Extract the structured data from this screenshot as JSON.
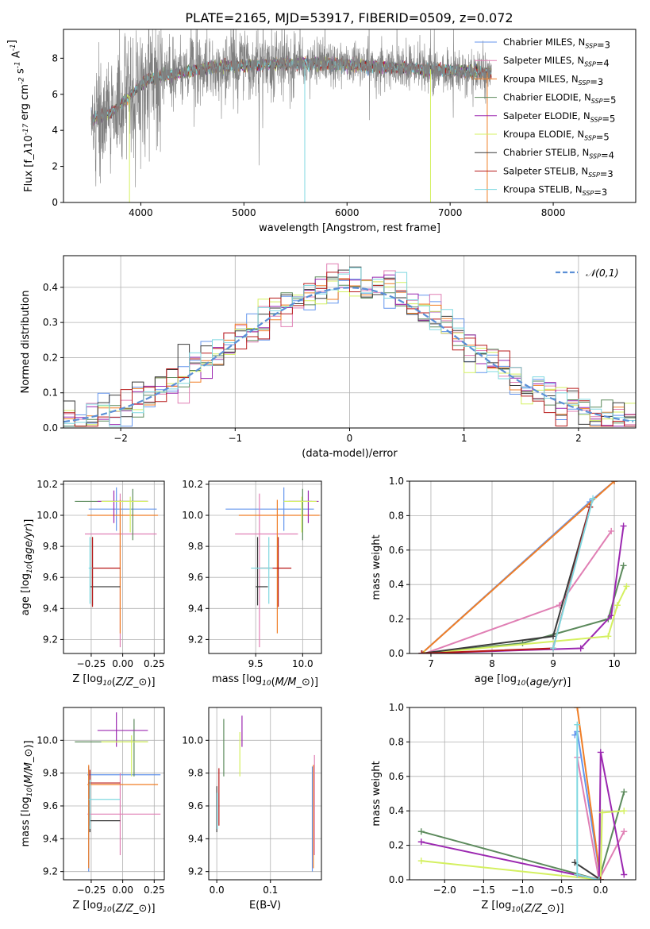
{
  "figure_title": "PLATE=2165, MJD=53917, FIBERID=0509, z=0.072",
  "colors": {
    "obs": "#808080",
    "chab_miles": "#6495ed",
    "salp_miles": "#e07fb4",
    "krou_miles": "#f07e26",
    "chab_elodie": "#5c8a5c",
    "salp_elodie": "#9b27b0",
    "krou_elodie": "#d4f060",
    "chab_stelib": "#3a3a3a",
    "salp_stelib": "#b81b1b",
    "krou_stelib": "#7fd8e0",
    "gauss": "#5b8fd6",
    "grid": "#b0b0b0"
  },
  "chart_data": [
    {
      "id": "spectrum",
      "type": "line",
      "xlabel": "wavelength [Angstrom, rest frame]",
      "ylabel": "Flux [f$_\\lambda$10$^{-17}$ erg cm$^{-2}$ s$^{-1}$ A$^{-1}$]",
      "xlim": [
        3250,
        8800
      ],
      "ylim": [
        0,
        9.6
      ],
      "xticks": [
        4000,
        5000,
        6000,
        7000,
        8000
      ],
      "yticks": [
        0,
        2,
        4,
        6,
        8
      ],
      "grid": false,
      "legend_loc": "right",
      "legend": [
        "Chabrier MILES, N$_{SSP}$=3",
        "Salpeter MILES, N$_{SSP}$=4",
        "Kroupa MILES, N$_{SSP}$=3",
        "Chabrier ELODIE, N$_{SSP}$=5",
        "Salpeter ELODIE, N$_{SSP}$=5",
        "Kroupa ELODIE, N$_{SSP}$=5",
        "Chabrier STELIB, N$_{SSP}$=4",
        "Salpeter STELIB, N$_{SSP}$=3",
        "Kroupa STELIB, N$_{SSP}$=3"
      ],
      "continuum": [
        [
          3500,
          4.6
        ],
        [
          3700,
          4.9
        ],
        [
          3850,
          5.7
        ],
        [
          3950,
          6.2
        ],
        [
          4050,
          6.8
        ],
        [
          4200,
          7.0
        ],
        [
          4400,
          7.2
        ],
        [
          4700,
          7.5
        ],
        [
          5000,
          7.6
        ],
        [
          5400,
          7.7
        ],
        [
          5800,
          7.7
        ],
        [
          6200,
          7.55
        ],
        [
          6600,
          7.45
        ],
        [
          7000,
          7.3
        ],
        [
          7400,
          7.2
        ]
      ]
    },
    {
      "id": "residuals",
      "type": "histogram",
      "xlabel": "(data-model)/error",
      "ylabel": "Normed distribution",
      "xlim": [
        -2.5,
        2.5
      ],
      "ylim": [
        0,
        0.49
      ],
      "xticks": [
        -2,
        -1,
        0,
        1,
        2
      ],
      "yticks": [
        0.0,
        0.1,
        0.2,
        0.3,
        0.4
      ],
      "grid": true,
      "legend": [
        "$\\mathcal{N}(0,1)$"
      ],
      "legend_loc": "top-right",
      "bin_width": 0.1
    },
    {
      "id": "age_vs_Z",
      "type": "errorbar",
      "xlabel": "Z [log$_{10}$($Z/Z_\\odot$)]",
      "ylabel": "age  [log$_{10}$($age/yr$)]",
      "xlim": [
        -0.47,
        0.33
      ],
      "ylim": [
        9.11,
        10.22
      ],
      "xticks": [
        -0.25,
        0.0,
        0.25
      ],
      "xticklabels": [
        "−0.25",
        "0.00",
        "0.25"
      ],
      "yticks": [
        9.2,
        9.4,
        9.6,
        9.8,
        10.0,
        10.2
      ],
      "grid": true,
      "points": [
        {
          "c": "chab_miles",
          "x": -0.05,
          "y": 10.04,
          "xe": [
            -0.27,
            0.27
          ],
          "ye": [
            9.9,
            10.18
          ]
        },
        {
          "c": "salp_miles",
          "x": -0.02,
          "y": 9.88,
          "xe": [
            -0.3,
            0.27
          ],
          "ye": [
            9.15,
            10.14
          ]
        },
        {
          "c": "krou_miles",
          "x": -0.02,
          "y": 10.0,
          "xe": [
            -0.28,
            0.28
          ],
          "ye": [
            9.24,
            10.1
          ]
        },
        {
          "c": "chab_elodie",
          "x": 0.08,
          "y": 10.09,
          "xe": [
            -0.38,
            0.2
          ],
          "ye": [
            9.84,
            10.17
          ]
        },
        {
          "c": "salp_elodie",
          "x": -0.07,
          "y": 10.09,
          "xe": [
            -0.2,
            0.2
          ],
          "ye": [
            9.95,
            10.16
          ]
        },
        {
          "c": "krou_elodie",
          "x": 0.06,
          "y": 10.09,
          "xe": [
            -0.17,
            0.2
          ],
          "ye": [
            9.89,
            10.12
          ]
        },
        {
          "c": "chab_stelib",
          "x": -0.24,
          "y": 9.54,
          "xe": [
            -0.26,
            -0.02
          ],
          "ye": [
            9.42,
            9.86
          ]
        },
        {
          "c": "salp_stelib",
          "x": -0.24,
          "y": 9.66,
          "xe": [
            -0.26,
            -0.02
          ],
          "ye": [
            9.41,
            9.86
          ]
        },
        {
          "c": "krou_stelib",
          "x": -0.26,
          "y": 9.66,
          "xe": [
            -0.27,
            -0.24
          ],
          "ye": [
            9.43,
            9.86
          ]
        }
      ]
    },
    {
      "id": "age_vs_mass",
      "type": "errorbar",
      "xlabel": "mass [log$_{10}$($M/M_\\odot$)]",
      "ylabel": "",
      "xlim": [
        9.0,
        10.2
      ],
      "ylim": [
        9.11,
        10.22
      ],
      "xticks": [
        9.5,
        10.0
      ],
      "xticklabels": [
        "9.5",
        "10.0"
      ],
      "yticks": [
        9.2,
        9.4,
        9.6,
        9.8,
        10.0,
        10.2
      ],
      "grid": true,
      "points": [
        {
          "c": "chab_miles",
          "x": 9.8,
          "y": 10.04,
          "xe": [
            9.18,
            10.12
          ],
          "ye": [
            9.9,
            10.18
          ]
        },
        {
          "c": "salp_miles",
          "x": 9.54,
          "y": 9.88,
          "xe": [
            9.28,
            9.95
          ],
          "ye": [
            9.15,
            10.14
          ]
        },
        {
          "c": "krou_miles",
          "x": 9.73,
          "y": 10.0,
          "xe": [
            9.32,
            10.18
          ],
          "ye": [
            9.24,
            10.1
          ]
        },
        {
          "c": "chab_elodie",
          "x": 10.0,
          "y": 10.09,
          "xe": [
            9.8,
            10.1
          ],
          "ye": [
            9.84,
            10.17
          ]
        },
        {
          "c": "salp_elodie",
          "x": 10.06,
          "y": 10.09,
          "xe": [
            9.85,
            10.17
          ],
          "ye": [
            9.95,
            10.16
          ]
        },
        {
          "c": "krou_elodie",
          "x": 9.99,
          "y": 10.09,
          "xe": [
            9.8,
            10.15
          ],
          "ye": [
            9.89,
            10.12
          ]
        },
        {
          "c": "chab_stelib",
          "x": 9.52,
          "y": 9.54,
          "xe": [
            9.5,
            9.63
          ],
          "ye": [
            9.42,
            9.86
          ]
        },
        {
          "c": "salp_stelib",
          "x": 9.74,
          "y": 9.66,
          "xe": [
            9.55,
            9.88
          ],
          "ye": [
            9.41,
            9.86
          ]
        },
        {
          "c": "krou_stelib",
          "x": 9.64,
          "y": 9.66,
          "xe": [
            9.45,
            9.68
          ],
          "ye": [
            9.43,
            9.86
          ]
        }
      ]
    },
    {
      "id": "weight_vs_age",
      "type": "line",
      "xlabel": "age  [log$_{10}$($age/yr$)]",
      "ylabel": "mass weight",
      "xlim": [
        6.65,
        10.35
      ],
      "ylim": [
        0.0,
        1.0
      ],
      "xticks": [
        7,
        8,
        9,
        10
      ],
      "yticks": [
        0.0,
        0.2,
        0.4,
        0.6,
        0.8,
        1.0
      ],
      "grid": true,
      "series": [
        {
          "c": "chab_miles",
          "x": [
            6.85,
            9.6,
            10.0
          ],
          "y": [
            0.0,
            0.88,
            1.0
          ]
        },
        {
          "c": "salp_miles",
          "x": [
            6.9,
            9.1,
            9.95
          ],
          "y": [
            0.0,
            0.28,
            0.71
          ]
        },
        {
          "c": "krou_miles",
          "x": [
            6.85,
            10.0
          ],
          "y": [
            0.0,
            1.0
          ]
        },
        {
          "c": "chab_elodie",
          "x": [
            6.85,
            8.5,
            9.9,
            10.15
          ],
          "y": [
            0.0,
            0.06,
            0.2,
            0.51
          ]
        },
        {
          "c": "salp_elodie",
          "x": [
            6.85,
            9.45,
            9.95,
            10.15
          ],
          "y": [
            0.0,
            0.03,
            0.22,
            0.74
          ]
        },
        {
          "c": "krou_elodie",
          "x": [
            6.9,
            9.9,
            10.05,
            10.2
          ],
          "y": [
            0.0,
            0.1,
            0.28,
            0.39
          ]
        },
        {
          "c": "chab_stelib",
          "x": [
            6.85,
            9.0,
            9.6
          ],
          "y": [
            0.0,
            0.1,
            0.85
          ]
        },
        {
          "c": "salp_stelib",
          "x": [
            6.85,
            9.0,
            9.6
          ],
          "y": [
            0.0,
            0.03,
            0.85
          ]
        },
        {
          "c": "krou_stelib",
          "x": [
            9.0,
            9.65
          ],
          "y": [
            0.03,
            0.9
          ]
        }
      ]
    },
    {
      "id": "mass_vs_Z",
      "type": "errorbar",
      "xlabel": "Z [log$_{10}$($Z/Z_\\odot$)]",
      "ylabel": "mass [log$_{10}$($M/M_\\odot$)]",
      "xlim": [
        -0.47,
        0.33
      ],
      "ylim": [
        9.15,
        10.2
      ],
      "xticks": [
        -0.25,
        0.0,
        0.25
      ],
      "xticklabels": [
        "−0.25",
        "0.00",
        "0.25"
      ],
      "yticks": [
        9.2,
        9.4,
        9.6,
        9.8,
        10.0
      ],
      "grid": true,
      "points": [
        {
          "c": "chab_miles",
          "x": -0.27,
          "y": 9.79,
          "xe": [
            -0.28,
            0.3
          ],
          "ye": [
            9.2,
            9.84
          ]
        },
        {
          "c": "salp_miles",
          "x": -0.02,
          "y": 9.55,
          "xe": [
            -0.28,
            0.3
          ],
          "ye": [
            9.3,
            9.8
          ]
        },
        {
          "c": "krou_miles",
          "x": -0.27,
          "y": 9.73,
          "xe": [
            -0.28,
            0.28
          ],
          "ye": [
            9.22,
            9.85
          ]
        },
        {
          "c": "chab_elodie",
          "x": 0.09,
          "y": 9.99,
          "xe": [
            -0.38,
            0.2
          ],
          "ye": [
            9.78,
            10.13
          ]
        },
        {
          "c": "salp_elodie",
          "x": -0.05,
          "y": 10.06,
          "xe": [
            -0.2,
            0.2
          ],
          "ye": [
            9.96,
            10.17
          ]
        },
        {
          "c": "krou_elodie",
          "x": 0.07,
          "y": 9.99,
          "xe": [
            -0.17,
            0.2
          ],
          "ye": [
            9.78,
            10.03
          ]
        },
        {
          "c": "chab_stelib",
          "x": -0.26,
          "y": 9.51,
          "xe": [
            -0.26,
            -0.02
          ],
          "ye": [
            9.44,
            9.76
          ]
        },
        {
          "c": "salp_stelib",
          "x": -0.26,
          "y": 9.74,
          "xe": [
            -0.27,
            -0.02
          ],
          "ye": [
            9.48,
            9.82
          ]
        },
        {
          "c": "krou_stelib",
          "x": -0.26,
          "y": 9.64,
          "xe": [
            -0.27,
            -0.02
          ],
          "ye": [
            9.46,
            9.76
          ]
        }
      ]
    },
    {
      "id": "mass_vs_ebv",
      "type": "errorbar",
      "xlabel": "E(B-V)",
      "ylabel": "",
      "xlim": [
        -0.015,
        0.195
      ],
      "ylim": [
        9.15,
        10.2
      ],
      "xticks": [
        0.0,
        0.1
      ],
      "xticklabels": [
        "0.0",
        "0.1"
      ],
      "yticks": [
        9.2,
        9.4,
        9.6,
        9.8,
        10.0
      ],
      "grid": true,
      "points": [
        {
          "c": "chab_miles",
          "x": 0.178,
          "y": 9.79,
          "ye": [
            9.2,
            9.84
          ]
        },
        {
          "c": "salp_miles",
          "x": 0.182,
          "y": 9.55,
          "ye": [
            9.3,
            9.91
          ]
        },
        {
          "c": "krou_miles",
          "x": 0.18,
          "y": 9.73,
          "ye": [
            9.22,
            9.85
          ]
        },
        {
          "c": "chab_elodie",
          "x": 0.013,
          "y": 9.99,
          "ye": [
            9.78,
            10.13
          ]
        },
        {
          "c": "salp_elodie",
          "x": 0.047,
          "y": 10.06,
          "ye": [
            9.96,
            10.15
          ]
        },
        {
          "c": "krou_elodie",
          "x": 0.043,
          "y": 9.99,
          "ye": [
            9.78,
            10.05
          ]
        },
        {
          "c": "chab_stelib",
          "x": 0.0,
          "y": 9.51,
          "ye": [
            9.44,
            9.72
          ]
        },
        {
          "c": "salp_stelib",
          "x": 0.004,
          "y": 9.74,
          "ye": [
            9.48,
            9.83
          ]
        },
        {
          "c": "krou_stelib",
          "x": 0.001,
          "y": 9.64,
          "ye": [
            9.46,
            9.68
          ]
        }
      ]
    },
    {
      "id": "weight_vs_Z",
      "type": "line",
      "xlabel": "Z [log$_{10}$($Z/Z_\\odot$)]",
      "ylabel": "mass weight",
      "xlim": [
        -2.45,
        0.45
      ],
      "ylim": [
        0.0,
        1.0
      ],
      "xticks": [
        -2.0,
        -1.5,
        -1.0,
        -0.5,
        0.0
      ],
      "xticklabels": [
        "−2.0",
        "−1.5",
        "−1.0",
        "−0.5",
        "0.0"
      ],
      "yticks": [
        0.0,
        0.2,
        0.4,
        0.6,
        0.8,
        1.0
      ],
      "grid": true,
      "series": [
        {
          "c": "chab_miles",
          "x": [
            -0.33,
            -0.3,
            0.0
          ],
          "y": [
            0.84,
            0.86,
            0.0
          ]
        },
        {
          "c": "salp_miles",
          "x": [
            -0.3,
            -0.02,
            0.3
          ],
          "y": [
            0.71,
            0.0,
            0.28
          ]
        },
        {
          "c": "krou_miles",
          "x": [
            -0.3,
            0.0
          ],
          "y": [
            1.0,
            0.0
          ]
        },
        {
          "c": "chab_elodie",
          "x": [
            -2.3,
            -0.02,
            0.3
          ],
          "y": [
            0.28,
            0.0,
            0.51
          ]
        },
        {
          "c": "salp_elodie",
          "x": [
            -2.3,
            -0.02,
            0.0,
            0.3
          ],
          "y": [
            0.22,
            0.0,
            0.74,
            0.03
          ]
        },
        {
          "c": "krou_elodie",
          "x": [
            -2.3,
            0.0,
            0.02,
            0.3
          ],
          "y": [
            0.11,
            0.0,
            0.39,
            0.4
          ]
        },
        {
          "c": "chab_stelib",
          "x": [
            -0.33,
            0.0
          ],
          "y": [
            0.1,
            0.0
          ]
        },
        {
          "c": "salp_stelib",
          "x": [
            -0.3,
            0.0
          ],
          "y": [
            0.03,
            0.0
          ]
        },
        {
          "c": "krou_stelib",
          "x": [
            -0.3,
            -0.3,
            -0.02
          ],
          "y": [
            0.9,
            0.03,
            0.0
          ]
        }
      ]
    }
  ]
}
